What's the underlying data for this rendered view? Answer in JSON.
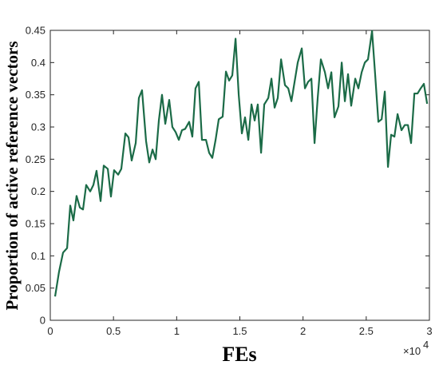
{
  "chart_data": {
    "type": "line",
    "x_label": "FEs",
    "y_label": "Proportion of active reference vectors",
    "x_multiplier": "×10",
    "x_multiplier_exponent": "4",
    "xlim": [
      0,
      3
    ],
    "ylim": [
      0,
      0.45
    ],
    "xticks": [
      0,
      0.5,
      1,
      1.5,
      2,
      2.5,
      3
    ],
    "yticks": [
      0,
      0.05,
      0.1,
      0.15,
      0.2,
      0.25,
      0.3,
      0.35,
      0.4,
      0.45
    ],
    "grid": false,
    "x": [
      0.038,
      0.069,
      0.101,
      0.133,
      0.158,
      0.183,
      0.208,
      0.234,
      0.259,
      0.284,
      0.316,
      0.341,
      0.366,
      0.398,
      0.423,
      0.455,
      0.48,
      0.505,
      0.537,
      0.562,
      0.594,
      0.619,
      0.644,
      0.676,
      0.701,
      0.726,
      0.758,
      0.783,
      0.809,
      0.834,
      0.859,
      0.884,
      0.91,
      0.941,
      0.966,
      0.992,
      1.017,
      1.042,
      1.067,
      1.099,
      1.124,
      1.149,
      1.175,
      1.2,
      1.232,
      1.257,
      1.282,
      1.308,
      1.333,
      1.364,
      1.39,
      1.415,
      1.44,
      1.466,
      1.491,
      1.516,
      1.541,
      1.567,
      1.592,
      1.617,
      1.642,
      1.668,
      1.693,
      1.725,
      1.75,
      1.775,
      1.8,
      1.826,
      1.857,
      1.883,
      1.908,
      1.933,
      1.958,
      1.99,
      2.015,
      2.04,
      2.066,
      2.091,
      2.116,
      2.141,
      2.173,
      2.198,
      2.224,
      2.249,
      2.28,
      2.306,
      2.331,
      2.356,
      2.381,
      2.413,
      2.438,
      2.464,
      2.489,
      2.514,
      2.546,
      2.571,
      2.596,
      2.622,
      2.647,
      2.672,
      2.697,
      2.723,
      2.748,
      2.779,
      2.805,
      2.83,
      2.855,
      2.881,
      2.906,
      2.931,
      2.956,
      2.982
    ],
    "series": [
      {
        "color": "#1b6b47",
        "values": [
          0.037,
          0.075,
          0.105,
          0.112,
          0.178,
          0.155,
          0.193,
          0.175,
          0.172,
          0.21,
          0.2,
          0.21,
          0.232,
          0.185,
          0.24,
          0.235,
          0.192,
          0.233,
          0.226,
          0.235,
          0.29,
          0.284,
          0.248,
          0.275,
          0.345,
          0.357,
          0.278,
          0.245,
          0.265,
          0.25,
          0.31,
          0.35,
          0.305,
          0.342,
          0.3,
          0.292,
          0.28,
          0.295,
          0.297,
          0.308,
          0.285,
          0.36,
          0.37,
          0.28,
          0.28,
          0.26,
          0.252,
          0.28,
          0.312,
          0.316,
          0.386,
          0.372,
          0.38,
          0.437,
          0.35,
          0.29,
          0.315,
          0.28,
          0.335,
          0.31,
          0.335,
          0.26,
          0.335,
          0.345,
          0.375,
          0.33,
          0.345,
          0.405,
          0.365,
          0.36,
          0.34,
          0.37,
          0.4,
          0.422,
          0.36,
          0.37,
          0.375,
          0.275,
          0.345,
          0.405,
          0.385,
          0.36,
          0.385,
          0.315,
          0.332,
          0.4,
          0.34,
          0.382,
          0.333,
          0.375,
          0.36,
          0.385,
          0.4,
          0.405,
          0.449,
          0.38,
          0.308,
          0.312,
          0.355,
          0.238,
          0.288,
          0.285,
          0.32,
          0.295,
          0.303,
          0.303,
          0.275,
          0.352,
          0.352,
          0.36,
          0.367,
          0.336
        ]
      }
    ]
  }
}
